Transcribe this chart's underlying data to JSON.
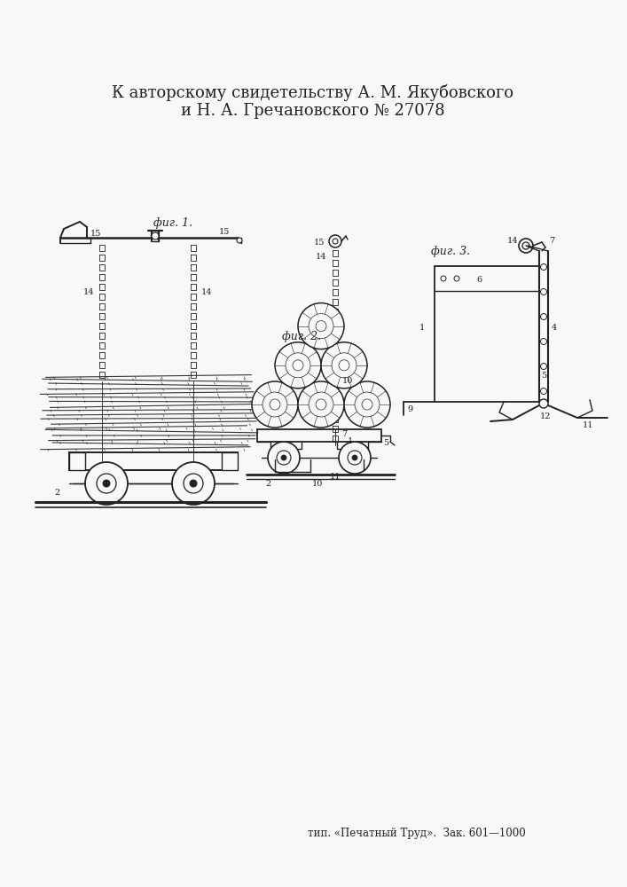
{
  "title_line1": "К авторскому свидетельству А. М. Якубовского",
  "title_line2": "и Н. А. Гречановского № 27078",
  "footer": "тип. «Печатный Труд».  Зак. 601—1000",
  "bg_color": "#f8f8f8",
  "text_color": "#222222",
  "title_fontsize": 13,
  "footer_fontsize": 8.5,
  "fig_label1": "фиг. 1.",
  "fig_label2": "фиг. 2.",
  "fig_label3": "фиг. 3."
}
